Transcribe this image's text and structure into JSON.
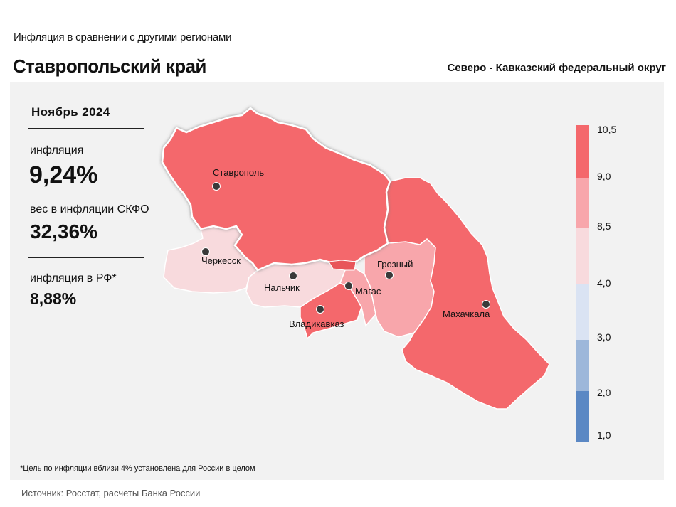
{
  "header": {
    "subtitle": "Инфляция  в сравнении  с другими  регионами",
    "title": "Ставропольский край",
    "district": "Северо - Кавказский федеральный округ"
  },
  "stats": {
    "period": "Ноябрь 2024",
    "inflation_label": "инфляция",
    "inflation_value": "9,24%",
    "weight_label": "вес в инфляции  СКФО",
    "weight_value": "32,36%",
    "rf_label": "инфляция  в РФ*",
    "rf_value": "8,88%"
  },
  "map": {
    "regions": [
      {
        "name": "Ставропольский край",
        "color": "#f4686c",
        "selected": true
      },
      {
        "name": "Карачаево-Черкесская Республика",
        "color": "#f8dadd"
      },
      {
        "name": "Кабардино-Балкарская Республика",
        "color": "#f8dadd"
      },
      {
        "name": "Республика Северная Осетия — Алания",
        "color": "#f4686c"
      },
      {
        "name": "Республика Ингушетия",
        "color": "#f8a6ab"
      },
      {
        "name": "Чеченская Республика",
        "color": "#f8a6ab"
      },
      {
        "name": "Республика Дагестан",
        "color": "#f4686c"
      }
    ],
    "cities": {
      "stavropol": "Ставрополь",
      "cherkessk": "Черкесск",
      "nalchik": "Нальчик",
      "magas": "Магас",
      "vladikavkaz": "Владикавказ",
      "grozny": "Грозный",
      "makhachkala": "Махачкала"
    }
  },
  "legend": {
    "segments": [
      {
        "from": 9.0,
        "to": 10.5,
        "color": "#f4686c"
      },
      {
        "from": 8.5,
        "to": 9.0,
        "color": "#f8a6ab"
      },
      {
        "from": 4.0,
        "to": 8.5,
        "color": "#f8dadd"
      },
      {
        "from": 3.0,
        "to": 4.0,
        "color": "#dae3f3"
      },
      {
        "from": 2.0,
        "to": 3.0,
        "color": "#9db7da"
      },
      {
        "from": 1.0,
        "to": 2.0,
        "color": "#5b88c4"
      }
    ],
    "ticks": [
      "10,5",
      "9,0",
      "8,5",
      "4,0",
      "3,0",
      "2,0",
      "1,0"
    ]
  },
  "footnote": "*Цель по инфляции вблизи 4% установлена для России в целом",
  "source": "Источник: Росстат, расчеты Банка России"
}
